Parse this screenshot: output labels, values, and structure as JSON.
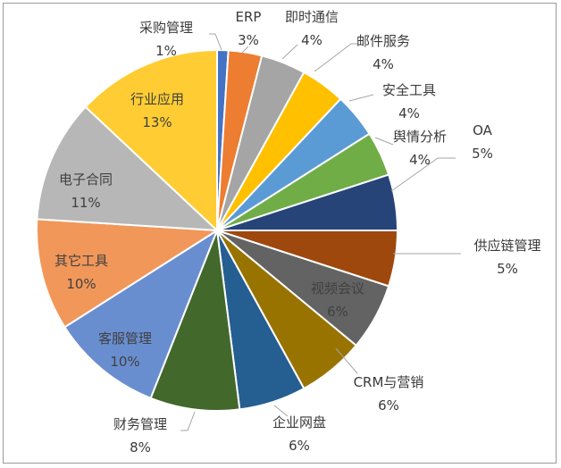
{
  "chart_data": {
    "type": "pie",
    "title": "",
    "start_angle_deg": 0,
    "direction": "clockwise",
    "slices": [
      {
        "label": "采购管理",
        "percent_label": "1%",
        "value": 1,
        "color": "#4472c4"
      },
      {
        "label": "ERP",
        "percent_label": "3%",
        "value": 3,
        "color": "#ed7d31"
      },
      {
        "label": "即时通信",
        "percent_label": "4%",
        "value": 4,
        "color": "#a5a5a5"
      },
      {
        "label": "邮件服务",
        "percent_label": "4%",
        "value": 4,
        "color": "#ffc000"
      },
      {
        "label": "安全工具",
        "percent_label": "4%",
        "value": 4,
        "color": "#5b9bd5"
      },
      {
        "label": "舆情分析",
        "percent_label": "4%",
        "value": 4,
        "color": "#70ad47"
      },
      {
        "label": "OA",
        "percent_label": "5%",
        "value": 5,
        "color": "#264478"
      },
      {
        "label": "供应链管理",
        "percent_label": "5%",
        "value": 5,
        "color": "#9e480e"
      },
      {
        "label": "视频会议",
        "percent_label": "6%",
        "value": 6,
        "color": "#636363"
      },
      {
        "label": "CRM与营销",
        "percent_label": "6%",
        "value": 6,
        "color": "#997300"
      },
      {
        "label": "企业网盘",
        "percent_label": "6%",
        "value": 6,
        "color": "#255e91"
      },
      {
        "label": "财务管理",
        "percent_label": "8%",
        "value": 8,
        "color": "#43682b"
      },
      {
        "label": "客服管理",
        "percent_label": "10%",
        "value": 10,
        "color": "#698ed0"
      },
      {
        "label": "其它工具",
        "percent_label": "10%",
        "value": 10,
        "color": "#f1975a"
      },
      {
        "label": "电子合同",
        "percent_label": "11%",
        "value": 11,
        "color": "#b7b7b7"
      },
      {
        "label": "行业应用",
        "percent_label": "13%",
        "value": 13,
        "color": "#ffcd33"
      }
    ]
  }
}
